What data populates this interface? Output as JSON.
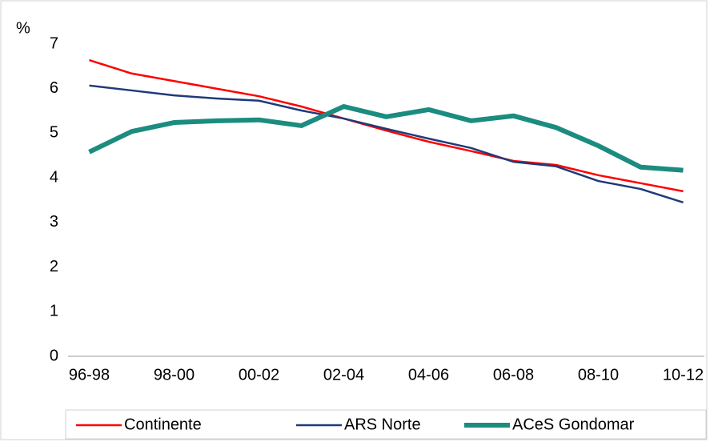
{
  "chart_data": {
    "type": "line",
    "y_label": "%",
    "categories": [
      "96-98",
      null,
      "98-00",
      null,
      "00-02",
      null,
      "02-04",
      null,
      "04-06",
      null,
      "06-08",
      null,
      "08-10",
      null,
      "10-12"
    ],
    "series": [
      {
        "name": "Continente",
        "color": "#ff0000",
        "values": [
          6.64,
          6.34,
          6.17,
          6.0,
          5.83,
          5.6,
          5.33,
          5.06,
          4.81,
          4.6,
          4.38,
          4.29,
          4.06,
          3.88,
          3.7
        ]
      },
      {
        "name": "ARS Norte",
        "color": "#1f3a7a",
        "values": [
          6.07,
          5.96,
          5.85,
          5.78,
          5.73,
          5.51,
          5.33,
          5.1,
          4.88,
          4.67,
          4.36,
          4.26,
          3.93,
          3.75,
          3.45
        ]
      },
      {
        "name": "ACeS Gondomar",
        "color": "#1b8c7f",
        "values": [
          4.58,
          5.04,
          5.24,
          5.28,
          5.3,
          5.17,
          5.6,
          5.37,
          5.53,
          5.28,
          5.39,
          5.13,
          4.72,
          4.24,
          4.17
        ]
      }
    ],
    "ylim": [
      0,
      7
    ],
    "yticks": [
      0,
      1,
      2,
      3,
      4,
      5,
      6,
      7
    ],
    "grid": false,
    "legend": "bottom"
  }
}
